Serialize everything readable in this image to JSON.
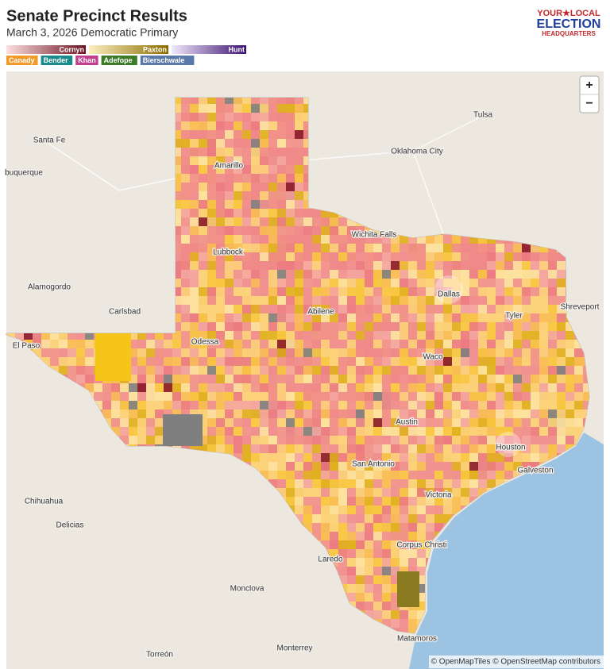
{
  "header": {
    "title": "Senate Precinct Results",
    "subtitle": "March 3, 2026 Democratic Primary"
  },
  "logo": {
    "line1": "YOUR★LOCAL",
    "line2": "ELECTION",
    "line3": "HEADQUARTERS"
  },
  "legend": {
    "ramps": [
      "Cornyn",
      "Paxton",
      "Hunt"
    ],
    "chips": [
      "Canady",
      "Bender",
      "Khan",
      "Adefope",
      "Bierschwale"
    ]
  },
  "map": {
    "zoom": [
      "+",
      "−"
    ],
    "cities": [
      "Santa Fe",
      "buquerque",
      "Tulsa",
      "Oklahoma City",
      "Amarillo",
      "Wichita Falls",
      "Lubbock",
      "Alamogordo",
      "Carlsbad",
      "Dallas",
      "Shreveport",
      "Tyler",
      "Abilene",
      "El Paso",
      "Odessa",
      "Waco",
      "Austin",
      "Houston",
      "Galveston",
      "San Antonio",
      "Victoria",
      "Chihuahua",
      "Delicias",
      "Corpus Christi",
      "Laredo",
      "Monclova",
      "Matamoros",
      "Monterrey",
      "Torreón"
    ],
    "attribution": "© OpenMapTiles © OpenStreetMap contributors"
  }
}
